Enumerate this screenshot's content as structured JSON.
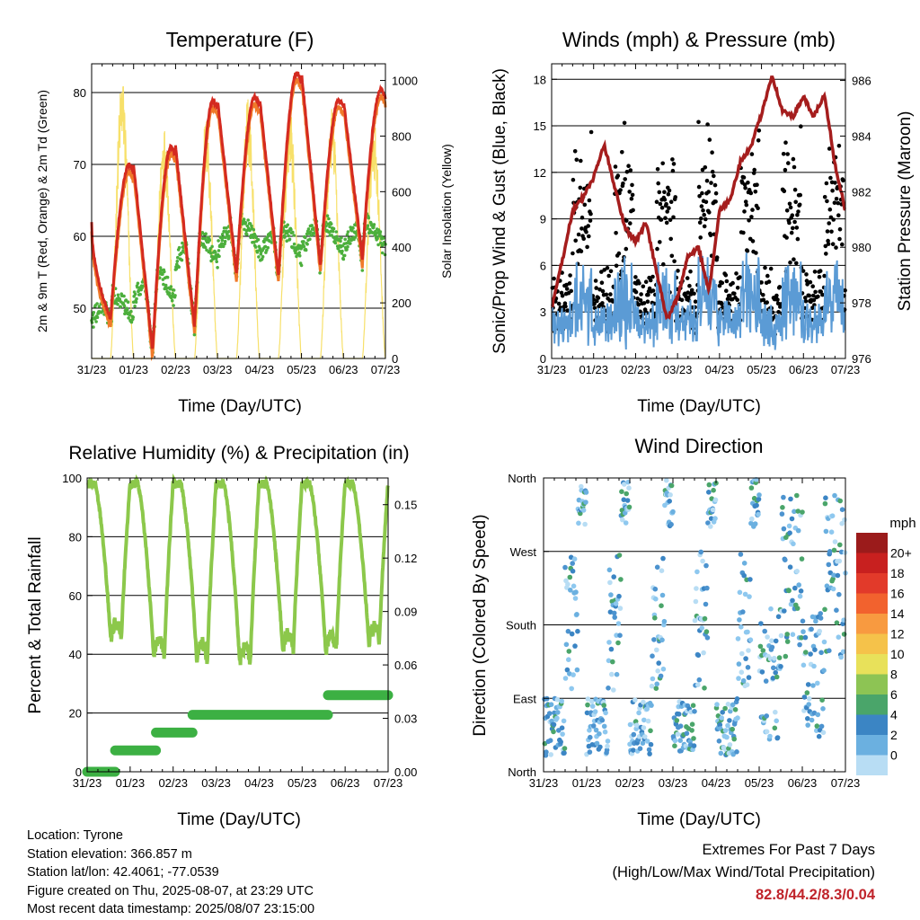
{
  "charts": {
    "temperature": {
      "title": "Temperature (F)",
      "ylabel": "2m & 9m T (Red, Orange) & 2m Td (Green)",
      "y2label": "Solar Insolation (Yellow)",
      "xlabel": "Time (Day/UTC)"
    },
    "winds": {
      "title": "Winds (mph) & Pressure (mb)",
      "ylabel": "Sonic/Prop Wind & Gust (Blue, Black)",
      "y2label": "Station Pressure (Maroon)",
      "xlabel": "Time (Day/UTC)"
    },
    "humidity": {
      "title": "Relative Humidity (%) & Precipitation (in)",
      "ylabel": "Percent & Total Rainfall",
      "xlabel": "Time (Day/UTC)"
    },
    "direction": {
      "title": "Wind Direction",
      "ylabel": "Direction (Colored By Speed)",
      "xlabel": "Time (Day/UTC)",
      "legend_title": "mph"
    }
  },
  "info": {
    "location": "Location: Tyrone",
    "elevation": "Station elevation: 366.857 m",
    "latlon": "Station lat/lon: 42.4061; -77.0539",
    "created": "Figure created on Thu, 2025-08-07, at 23:29 UTC",
    "recent": "Most recent data timestamp: 2025/08/07 23:15:00"
  },
  "extremes": {
    "line1": "Extremes For Past 7 Days",
    "line2": "(High/Low/Max Wind/Total Precipitation)",
    "values": "82.8/44.2/8.3/0.04"
  },
  "colors": {
    "temp2m": "#d42a20",
    "temp9m": "#f07a2a",
    "dewpoint": "#4caf3c",
    "solar": "#f7e06a",
    "wind": "#5b9bd5",
    "gust": "#000000",
    "pressure": "#a51d1d",
    "rh": "#8cc84b",
    "precip": "#3cb043"
  },
  "chart_data": [
    {
      "type": "line",
      "title": "Temperature (F)",
      "xlabel": "Time (Day/UTC)",
      "ylabel": "2m & 9m T (Red, Orange) & 2m Td (Green)",
      "y2label": "Solar Insolation (Yellow)",
      "x_ticks": [
        "31/23",
        "01/23",
        "02/23",
        "03/23",
        "04/23",
        "05/23",
        "06/23",
        "07/23"
      ],
      "x_range_days": [
        0,
        7
      ],
      "ylim": [
        43,
        84
      ],
      "y_ticks": [
        50,
        60,
        70,
        80
      ],
      "y2lim": [
        0,
        1060
      ],
      "y2_ticks": [
        0,
        200,
        400,
        600,
        800,
        1000
      ],
      "daily_max_temp": [
        70,
        72.5,
        79,
        79.5,
        82.8,
        79,
        80.5
      ],
      "daily_min_temp": [
        48.5,
        44.2,
        47.5,
        55,
        54.5,
        56,
        57
      ],
      "daily_max_dewpoint": [
        52,
        55,
        60,
        62,
        61,
        62,
        62
      ],
      "daily_peak_solar": [
        1020,
        840,
        870,
        940,
        900,
        910,
        860
      ],
      "series": [
        {
          "name": "2m T",
          "color": "#d42a20"
        },
        {
          "name": "9m T",
          "color": "#f07a2a"
        },
        {
          "name": "2m Td",
          "color": "#4caf3c"
        },
        {
          "name": "Solar Insolation",
          "color": "#f7e06a"
        }
      ]
    },
    {
      "type": "scatter",
      "title": "Winds (mph) & Pressure (mb)",
      "xlabel": "Time (Day/UTC)",
      "ylabel": "Sonic/Prop Wind & Gust (Blue, Black)",
      "y2label": "Station Pressure (Maroon)",
      "x_ticks": [
        "31/23",
        "01/23",
        "02/23",
        "03/23",
        "04/23",
        "05/23",
        "06/23",
        "07/23"
      ],
      "ylim": [
        0,
        19
      ],
      "y_ticks": [
        0,
        3,
        6,
        9,
        12,
        15,
        18
      ],
      "y2lim": [
        976,
        986.6
      ],
      "y2_ticks": [
        976,
        978,
        980,
        982,
        984,
        986
      ],
      "max_wind": 8.3,
      "pressure_series": {
        "name": "Station Pressure",
        "x_days": [
          0,
          0.25,
          0.5,
          0.75,
          1.0,
          1.25,
          1.5,
          1.75,
          2.0,
          2.25,
          2.5,
          2.75,
          3.0,
          3.25,
          3.5,
          3.75,
          4.0,
          4.25,
          4.5,
          4.75,
          5.0,
          5.25,
          5.5,
          5.75,
          6.0,
          6.25,
          6.5,
          6.75,
          7.0
        ],
        "values": [
          977.8,
          979.5,
          981.3,
          981.8,
          982.5,
          983.7,
          982.2,
          980.7,
          980.2,
          980.9,
          979.1,
          977.4,
          978.2,
          979.7,
          980.0,
          978.4,
          981.3,
          981.7,
          983.1,
          983.6,
          984.8,
          986.2,
          984.9,
          984.7,
          985.4,
          984.7,
          985.5,
          983.0,
          981.3
        ]
      },
      "series": [
        {
          "name": "Sonic/Prop Wind",
          "color": "#5b9bd5"
        },
        {
          "name": "Gust",
          "color": "#000000"
        },
        {
          "name": "Station Pressure",
          "color": "#a51d1d"
        }
      ]
    },
    {
      "type": "line",
      "title": "Relative Humidity (%) & Precipitation (in)",
      "xlabel": "Time (Day/UTC)",
      "ylabel": "Percent & Total Rainfall",
      "x_ticks": [
        "31/23",
        "01/23",
        "02/23",
        "03/23",
        "04/23",
        "05/23",
        "06/23",
        "07/23"
      ],
      "ylim": [
        0,
        100
      ],
      "y_ticks": [
        0,
        20,
        40,
        60,
        80,
        100
      ],
      "y2lim": [
        0,
        0.165
      ],
      "y2_ticks": [
        "0.00",
        "0.03",
        "0.06",
        "0.09",
        "0.12",
        "0.15"
      ],
      "daily_min_rh": [
        45,
        39,
        38,
        37,
        41,
        41,
        44
      ],
      "precip_steps": {
        "x_days": [
          0,
          0.65,
          1.6,
          2.45,
          5.6,
          7.0
        ],
        "values": [
          0.0,
          0.012,
          0.022,
          0.032,
          0.043,
          0.043
        ]
      },
      "series": [
        {
          "name": "Relative Humidity",
          "color": "#8cc84b"
        },
        {
          "name": "Total Precipitation",
          "color": "#3cb043"
        }
      ]
    },
    {
      "type": "scatter",
      "title": "Wind Direction",
      "xlabel": "Time (Day/UTC)",
      "ylabel": "Direction (Colored By Speed)",
      "x_ticks": [
        "31/23",
        "01/23",
        "02/23",
        "03/23",
        "04/23",
        "05/23",
        "06/23",
        "07/23"
      ],
      "y_ticks": [
        "North",
        "East",
        "South",
        "West",
        "North"
      ],
      "ylim_deg": [
        0,
        360
      ],
      "legend": {
        "title": "mph",
        "labels": [
          "20+",
          "18",
          "16",
          "14",
          "12",
          "10",
          "8",
          "6",
          "4",
          "2",
          "0"
        ],
        "colors": [
          "#9b1b1b",
          "#c8201f",
          "#e23a2a",
          "#f2622e",
          "#f89a40",
          "#f5c24a",
          "#e8e15a",
          "#8dc454",
          "#4aa56a",
          "#3b85c4",
          "#6bb0e0",
          "#b8ddf4"
        ]
      }
    }
  ]
}
